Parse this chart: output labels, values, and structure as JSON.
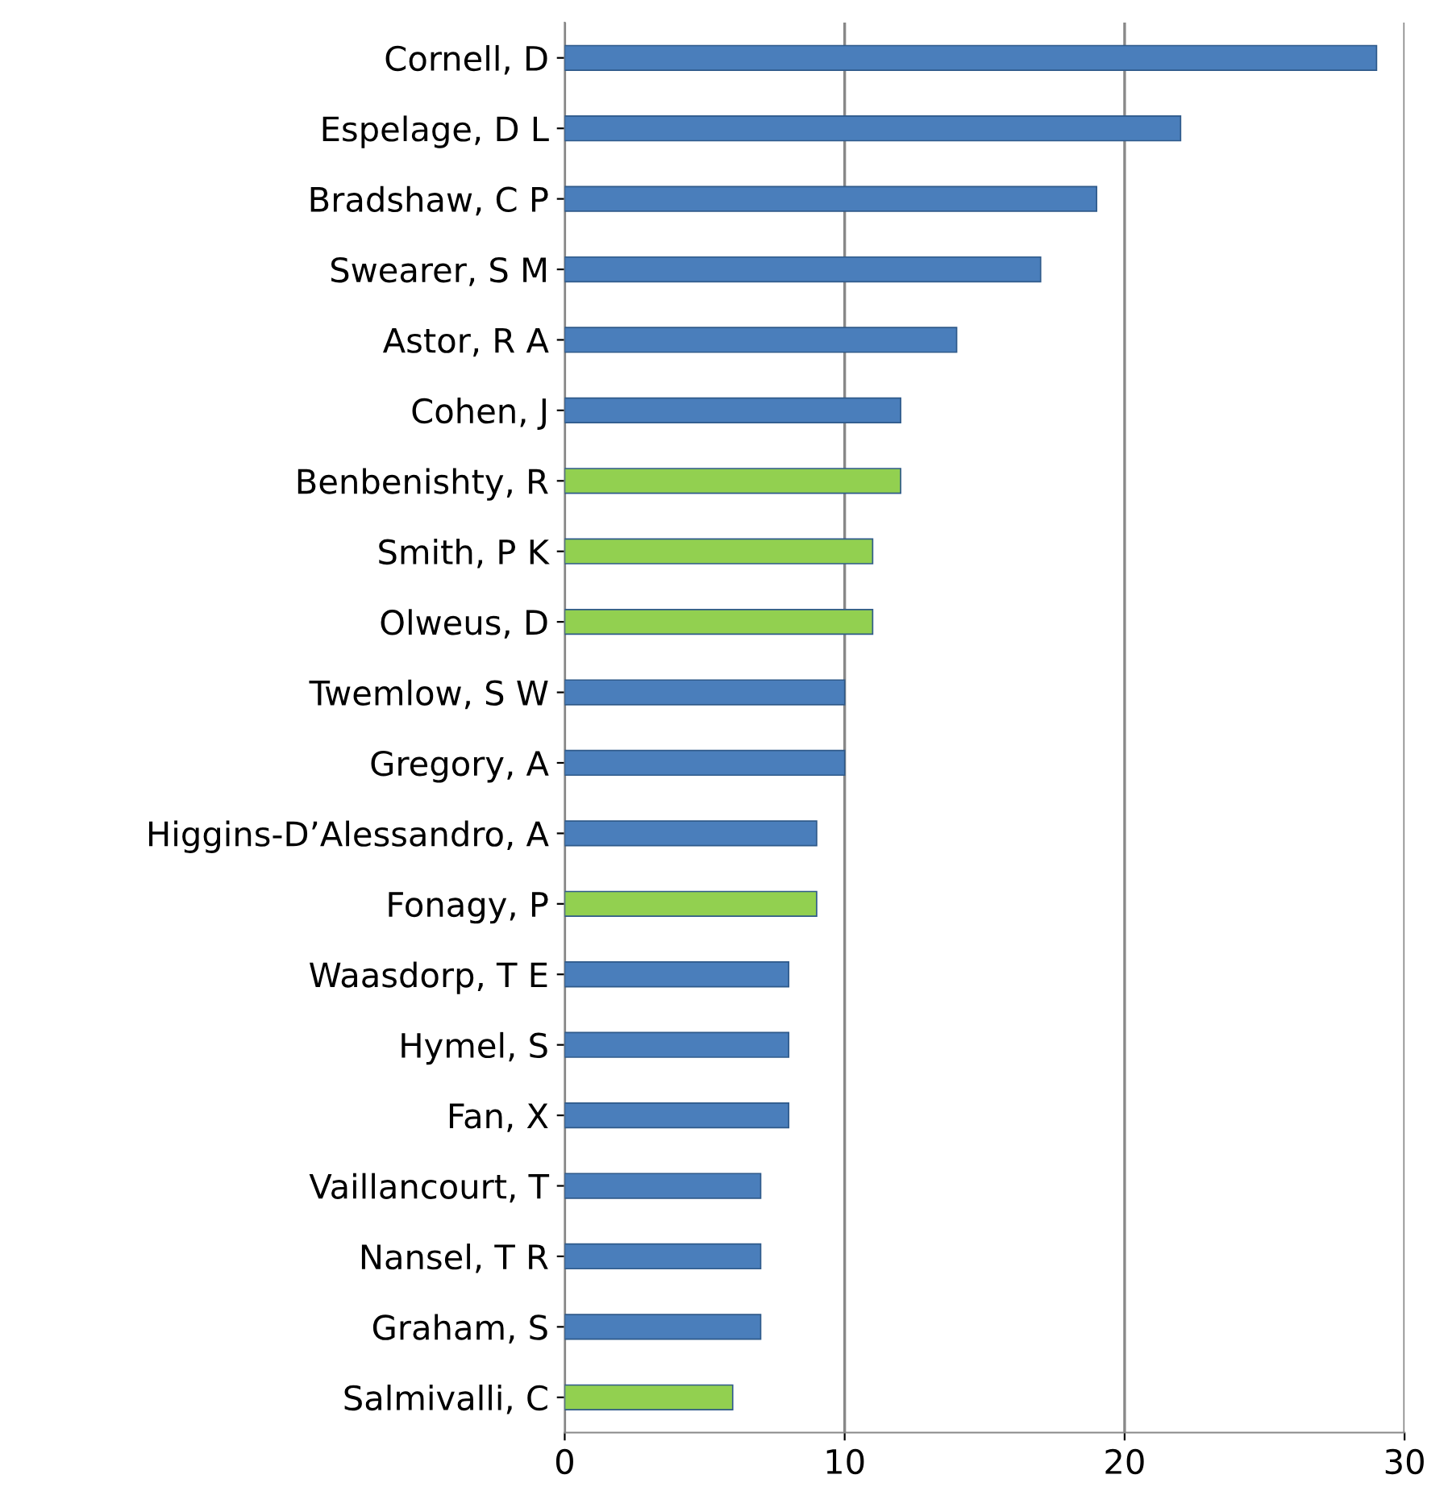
{
  "chart_data": {
    "type": "bar",
    "orientation": "horizontal",
    "categories": [
      "Cornell, D",
      "Espelage, D L",
      "Bradshaw, C P",
      "Swearer, S M",
      "Astor, R A",
      "Cohen, J",
      "Benbenishty, R",
      "Smith, P K",
      "Olweus, D",
      "Twemlow, S W",
      "Gregory, A",
      "Higgins-D’Alessandro, A",
      "Fonagy, P",
      "Waasdorp, T E",
      "Hymel, S",
      "Fan, X",
      "Vaillancourt, T",
      "Nansel, T R",
      "Graham, S",
      "Salmivalli, C"
    ],
    "values": [
      29,
      22,
      19,
      17,
      14,
      12,
      12,
      11,
      11,
      10,
      10,
      9,
      9,
      8,
      8,
      8,
      7,
      7,
      7,
      6
    ],
    "colors": [
      "#4a7ebb",
      "#4a7ebb",
      "#4a7ebb",
      "#4a7ebb",
      "#4a7ebb",
      "#4a7ebb",
      "#92d050",
      "#92d050",
      "#92d050",
      "#4a7ebb",
      "#4a7ebb",
      "#4a7ebb",
      "#92d050",
      "#4a7ebb",
      "#4a7ebb",
      "#4a7ebb",
      "#4a7ebb",
      "#4a7ebb",
      "#4a7ebb",
      "#92d050"
    ],
    "xlim": [
      0,
      30
    ],
    "xticks": [
      0,
      10,
      20,
      30
    ],
    "grid": "x"
  }
}
